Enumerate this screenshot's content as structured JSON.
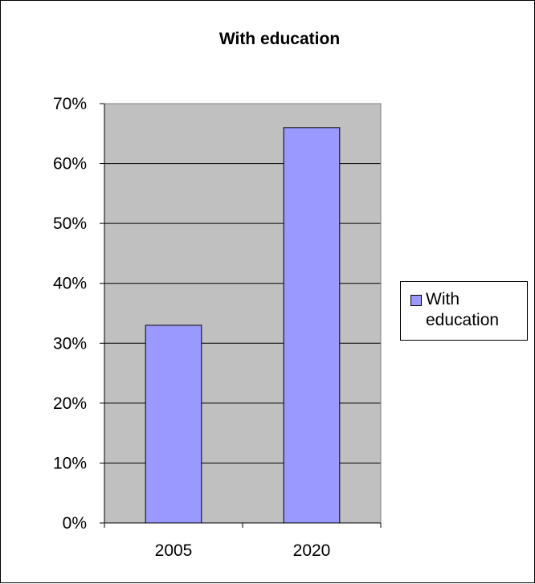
{
  "chart_data": {
    "type": "bar",
    "title": "With education",
    "categories": [
      "2005",
      "2020"
    ],
    "series": [
      {
        "name": "With education",
        "values": [
          33,
          66
        ],
        "color": "#9999ff"
      }
    ],
    "xlabel": "",
    "ylabel": "",
    "ylim": [
      0,
      70
    ],
    "yticks": [
      "0%",
      "10%",
      "20%",
      "30%",
      "40%",
      "50%",
      "60%",
      "70%"
    ],
    "grid": true,
    "plot_background": "#c0c0c0",
    "legend_position": "right"
  }
}
